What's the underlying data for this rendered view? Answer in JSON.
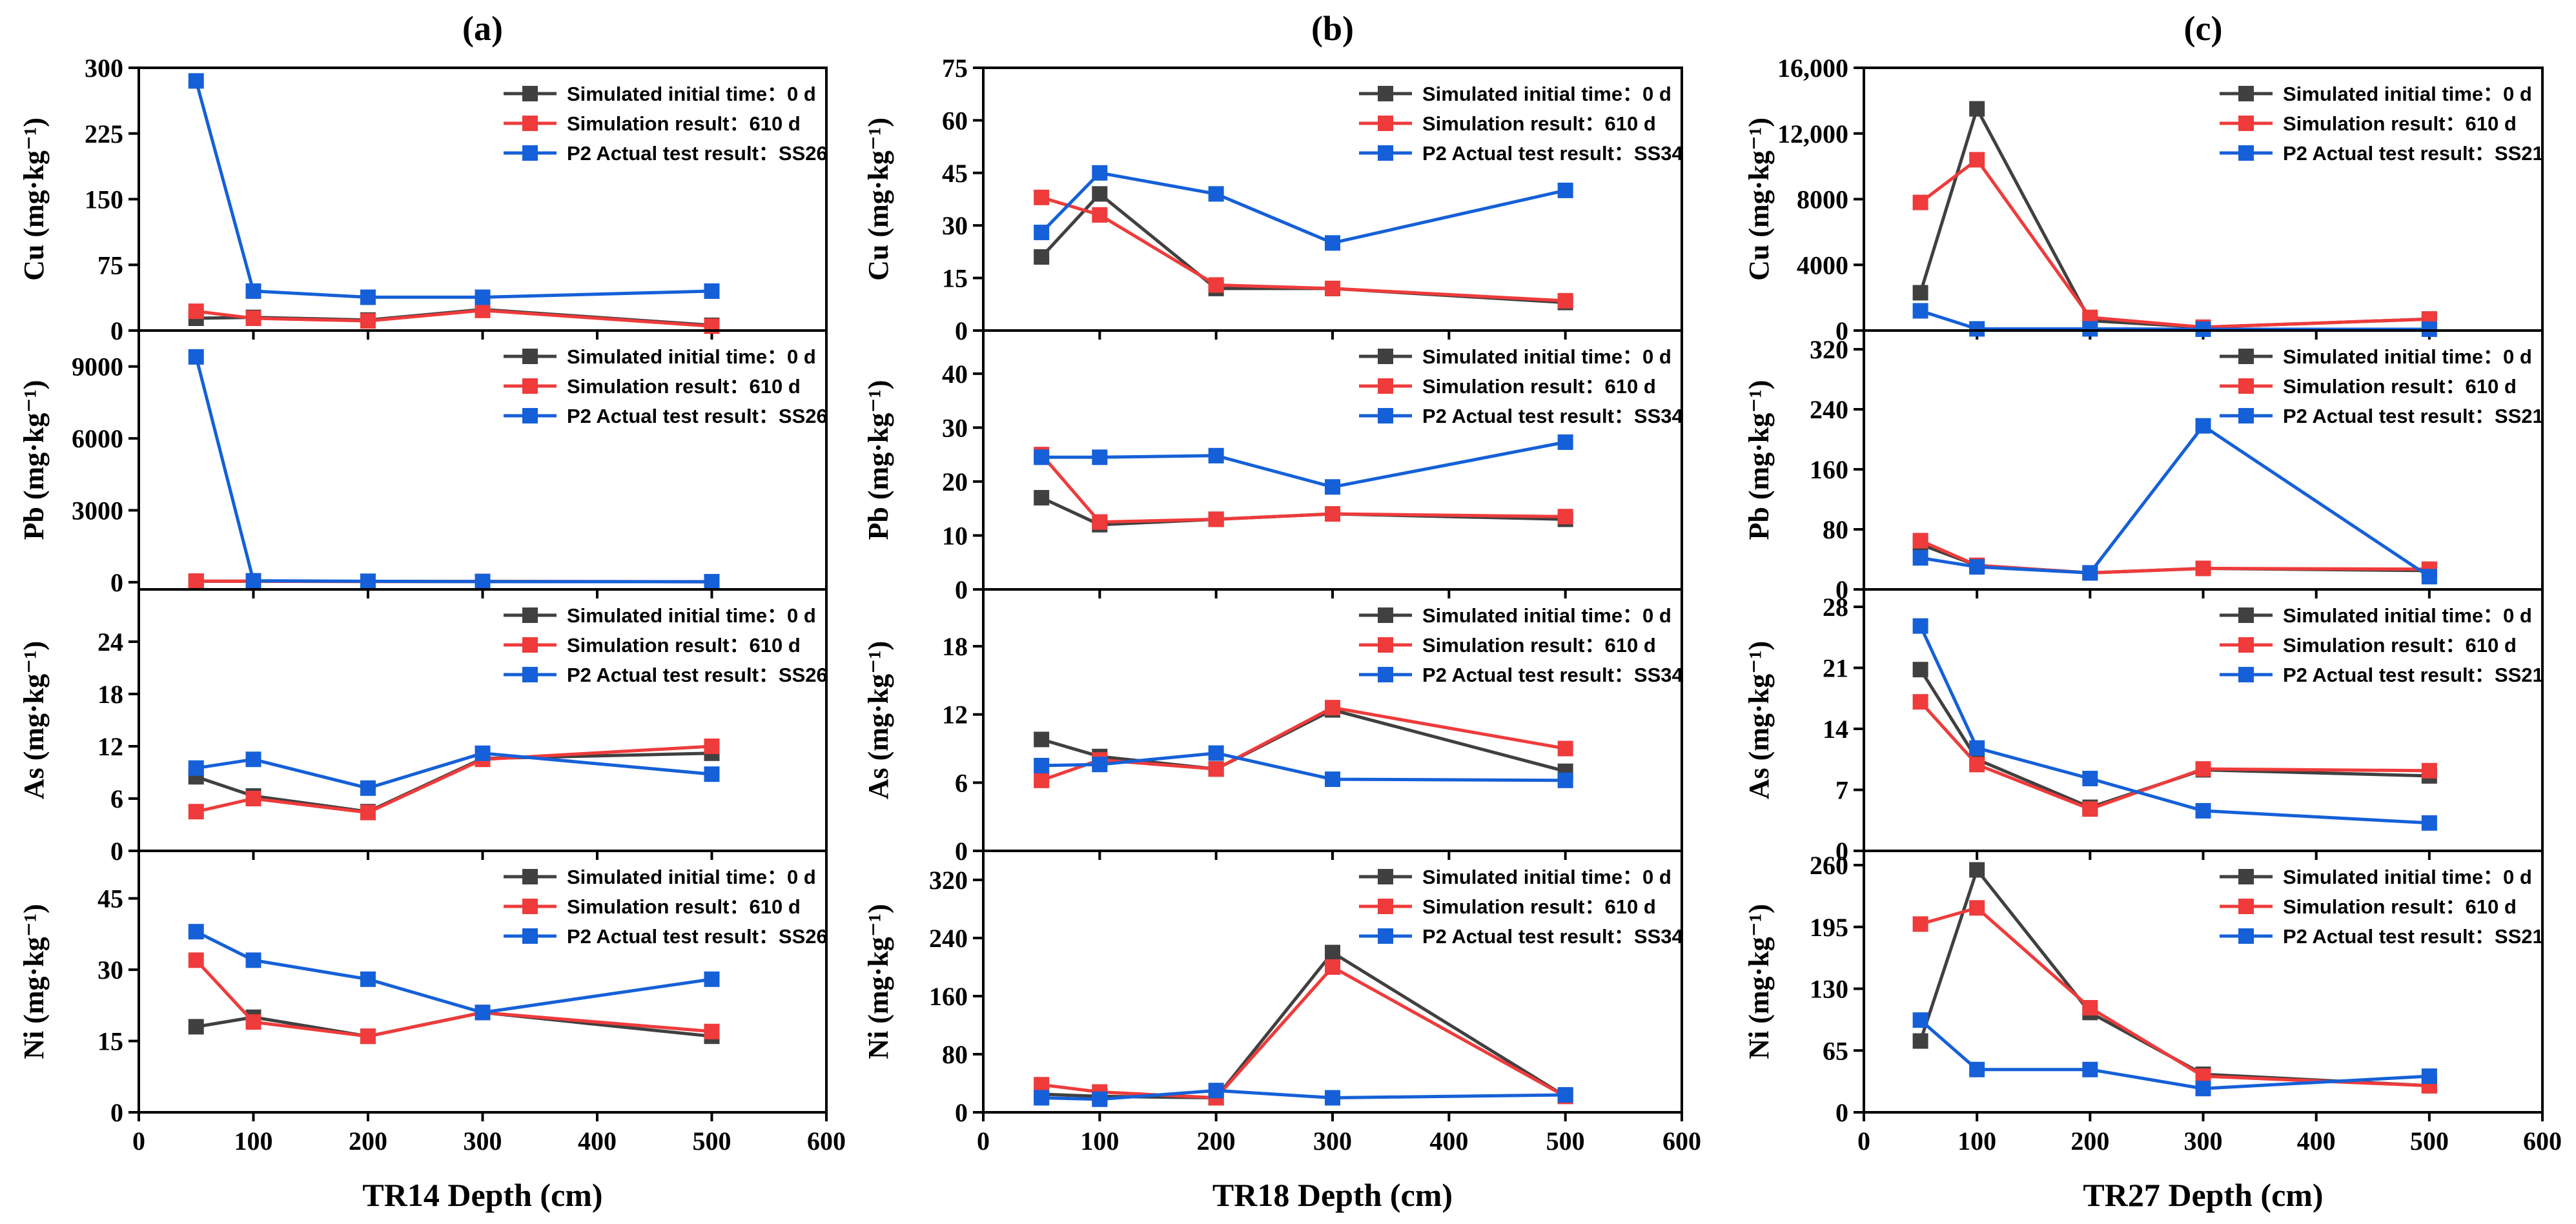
{
  "colors": {
    "initial": "#404040",
    "simulation": "#ef3b3b",
    "actual": "#1560d8",
    "axis": "#000000"
  },
  "x_tick_labels": [
    "0",
    "100",
    "200",
    "300",
    "400",
    "500",
    "600"
  ],
  "chart_data": [
    {
      "type": "line",
      "title": "(a)",
      "xlabel": "TR14 Depth (cm)",
      "xlim": [
        0,
        600
      ],
      "x": [
        50,
        100,
        200,
        300,
        500
      ],
      "panels": [
        {
          "element": "Cu",
          "ylabel": "Cu (mg·kg⁻¹)",
          "ylim": [
            0,
            300
          ],
          "yticks": [
            0,
            75,
            150,
            225,
            300
          ],
          "ytick_labels": [
            "0",
            "75",
            "150",
            "225",
            "300"
          ],
          "series": [
            {
              "name": "Simulated initial time：0 d",
              "values": [
                14,
                15,
                12,
                24,
                6
              ]
            },
            {
              "name": "Simulation result：610 d",
              "values": [
                22,
                14,
                11,
                23,
                5
              ]
            },
            {
              "name": "P2 Actual test result：SS26",
              "values": [
                285,
                45,
                38,
                38,
                45
              ]
            }
          ]
        },
        {
          "element": "Pb",
          "ylabel": "Pb (mg·kg⁻¹)",
          "ylim": [
            -300,
            10500
          ],
          "yticks": [
            0,
            3000,
            6000,
            9000
          ],
          "ytick_labels": [
            "0",
            "3000",
            "6000",
            "9000"
          ],
          "series": [
            {
              "name": "Simulated initial time：0 d",
              "values": [
                40,
                45,
                35,
                30,
                20
              ]
            },
            {
              "name": "Simulation result：610 d",
              "values": [
                45,
                40,
                30,
                30,
                20
              ]
            },
            {
              "name": "P2 Actual test result：SS26",
              "values": [
                9400,
                60,
                40,
                25,
                20
              ]
            }
          ]
        },
        {
          "element": "As",
          "ylabel": "As (mg·kg⁻¹)",
          "ylim": [
            0,
            30
          ],
          "yticks": [
            0,
            6,
            12,
            18,
            24
          ],
          "ytick_labels": [
            "0",
            "6",
            "12",
            "18",
            "24"
          ],
          "series": [
            {
              "name": "Simulated initial time：0 d",
              "values": [
                8.5,
                6.3,
                4.5,
                10.6,
                11.2
              ]
            },
            {
              "name": "Simulation result：610 d",
              "values": [
                4.5,
                6.0,
                4.4,
                10.5,
                12.0
              ]
            },
            {
              "name": "P2 Actual test result：SS26",
              "values": [
                9.5,
                10.5,
                7.2,
                11.2,
                8.8
              ]
            }
          ]
        },
        {
          "element": "Ni",
          "ylabel": "Ni (mg·kg⁻¹)",
          "ylim": [
            0,
            55
          ],
          "yticks": [
            0,
            15,
            30,
            45
          ],
          "ytick_labels": [
            "0",
            "15",
            "30",
            "45"
          ],
          "series": [
            {
              "name": "Simulated initial time：0 d",
              "values": [
                18,
                20,
                16,
                21,
                16
              ]
            },
            {
              "name": "Simulation result：610 d",
              "values": [
                32,
                19,
                16,
                21,
                17
              ]
            },
            {
              "name": "P2 Actual test result：SS26",
              "values": [
                38,
                32,
                28,
                21,
                28
              ]
            }
          ]
        }
      ]
    },
    {
      "type": "line",
      "title": "(b)",
      "xlabel": "TR18 Depth (cm)",
      "xlim": [
        0,
        600
      ],
      "x": [
        50,
        100,
        200,
        300,
        500
      ],
      "panels": [
        {
          "element": "Cu",
          "ylabel": "Cu (mg·kg⁻¹)",
          "ylim": [
            0,
            75
          ],
          "yticks": [
            0,
            15,
            30,
            45,
            60,
            75
          ],
          "ytick_labels": [
            "0",
            "15",
            "30",
            "45",
            "60",
            "75"
          ],
          "series": [
            {
              "name": "Simulated initial time：0 d",
              "values": [
                21,
                39,
                12,
                12,
                8
              ]
            },
            {
              "name": "Simulation result：610 d",
              "values": [
                38,
                33,
                13,
                12,
                8.5
              ]
            },
            {
              "name": "P2 Actual test result：SS34",
              "values": [
                28,
                45,
                39,
                25,
                40
              ]
            }
          ]
        },
        {
          "element": "Pb",
          "ylabel": "Pb (mg·kg⁻¹)",
          "ylim": [
            0,
            48
          ],
          "yticks": [
            0,
            10,
            20,
            30,
            40
          ],
          "ytick_labels": [
            "0",
            "10",
            "20",
            "30",
            "40"
          ],
          "series": [
            {
              "name": "Simulated initial time：0 d",
              "values": [
                17,
                12,
                13,
                14,
                13
              ]
            },
            {
              "name": "Simulation result：610 d",
              "values": [
                25,
                12.5,
                13,
                14,
                13.5
              ]
            },
            {
              "name": "P2 Actual test result：SS34",
              "values": [
                24.5,
                24.5,
                24.8,
                19,
                27.3
              ]
            }
          ]
        },
        {
          "element": "As",
          "ylabel": "As (mg·kg⁻¹)",
          "ylim": [
            0,
            23
          ],
          "yticks": [
            0,
            6,
            12,
            18
          ],
          "ytick_labels": [
            "0",
            "6",
            "12",
            "18"
          ],
          "series": [
            {
              "name": "Simulated initial time：0 d",
              "values": [
                9.8,
                8.3,
                7.2,
                12.4,
                7.0
              ]
            },
            {
              "name": "Simulation result：610 d",
              "values": [
                6.2,
                8.0,
                7.2,
                12.6,
                9.0
              ]
            },
            {
              "name": "P2 Actual test result：SS34",
              "values": [
                7.5,
                7.6,
                8.6,
                6.3,
                6.2
              ]
            }
          ]
        },
        {
          "element": "Ni",
          "ylabel": "Ni (mg·kg⁻¹)",
          "ylim": [
            0,
            360
          ],
          "yticks": [
            0,
            80,
            160,
            240,
            320
          ],
          "ytick_labels": [
            "0",
            "80",
            "160",
            "240",
            "320"
          ],
          "series": [
            {
              "name": "Simulated initial time：0 d",
              "values": [
                25,
                22,
                20,
                220,
                22
              ]
            },
            {
              "name": "Simulation result：610 d",
              "values": [
                38,
                28,
                20,
                200,
                22
              ]
            },
            {
              "name": "P2 Actual test result：SS34",
              "values": [
                20,
                18,
                30,
                20,
                24
              ]
            }
          ]
        }
      ]
    },
    {
      "type": "line",
      "title": "(c)",
      "xlabel": "TR27 Depth (cm)",
      "xlim": [
        0,
        600
      ],
      "x": [
        50,
        100,
        200,
        300,
        500
      ],
      "panels": [
        {
          "element": "Cu",
          "ylabel": "Cu (mg·kg⁻¹)",
          "ylim": [
            0,
            16000
          ],
          "yticks": [
            0,
            4000,
            8000,
            12000,
            16000
          ],
          "ytick_labels": [
            "0",
            "4000",
            "8000",
            "12,000",
            "16,000"
          ],
          "series": [
            {
              "name": "Simulated initial time：0 d",
              "values": [
                2300,
                13500,
                600,
                200,
                700
              ]
            },
            {
              "name": "Simulation result：610 d",
              "values": [
                7800,
                10400,
                800,
                200,
                700
              ]
            },
            {
              "name": "P2 Actual test result：SS21",
              "values": [
                1200,
                100,
                100,
                80,
                80
              ]
            }
          ]
        },
        {
          "element": "Pb",
          "ylabel": "Pb (mg·kg⁻¹)",
          "ylim": [
            0,
            345
          ],
          "yticks": [
            0,
            80,
            160,
            240,
            320
          ],
          "ytick_labels": [
            "0",
            "80",
            "160",
            "240",
            "320"
          ],
          "series": [
            {
              "name": "Simulated initial time：0 d",
              "values": [
                60,
                32,
                22,
                28,
                25
              ]
            },
            {
              "name": "Simulation result：610 d",
              "values": [
                65,
                32,
                22,
                28,
                27
              ]
            },
            {
              "name": "P2 Actual test result：SS21",
              "values": [
                42,
                30,
                22,
                218,
                17
              ]
            }
          ]
        },
        {
          "element": "As",
          "ylabel": "As (mg·kg⁻¹)",
          "ylim": [
            0,
            30
          ],
          "yticks": [
            0,
            7,
            14,
            21,
            28
          ],
          "ytick_labels": [
            "0",
            "7",
            "14",
            "21",
            "28"
          ],
          "series": [
            {
              "name": "Simulated initial time：0 d",
              "values": [
                20.8,
                10.5,
                5.0,
                9.3,
                8.6
              ]
            },
            {
              "name": "Simulation result：610 d",
              "values": [
                17.1,
                9.9,
                4.8,
                9.4,
                9.2
              ]
            },
            {
              "name": "P2 Actual test result：SS21",
              "values": [
                25.8,
                11.8,
                8.3,
                4.6,
                3.2
              ]
            }
          ]
        },
        {
          "element": "Ni",
          "ylabel": "Ni (mg·kg⁻¹)",
          "ylim": [
            0,
            275
          ],
          "yticks": [
            0,
            65,
            130,
            195,
            260
          ],
          "ytick_labels": [
            "0",
            "65",
            "130",
            "195",
            "260"
          ],
          "series": [
            {
              "name": "Simulated initial time：0 d",
              "values": [
                75,
                255,
                105,
                40,
                28
              ]
            },
            {
              "name": "Simulation result：610 d",
              "values": [
                198,
                215,
                110,
                38,
                28
              ]
            },
            {
              "name": "P2 Actual test result：SS21",
              "values": [
                97,
                45,
                45,
                25,
                38
              ]
            }
          ]
        }
      ]
    }
  ]
}
